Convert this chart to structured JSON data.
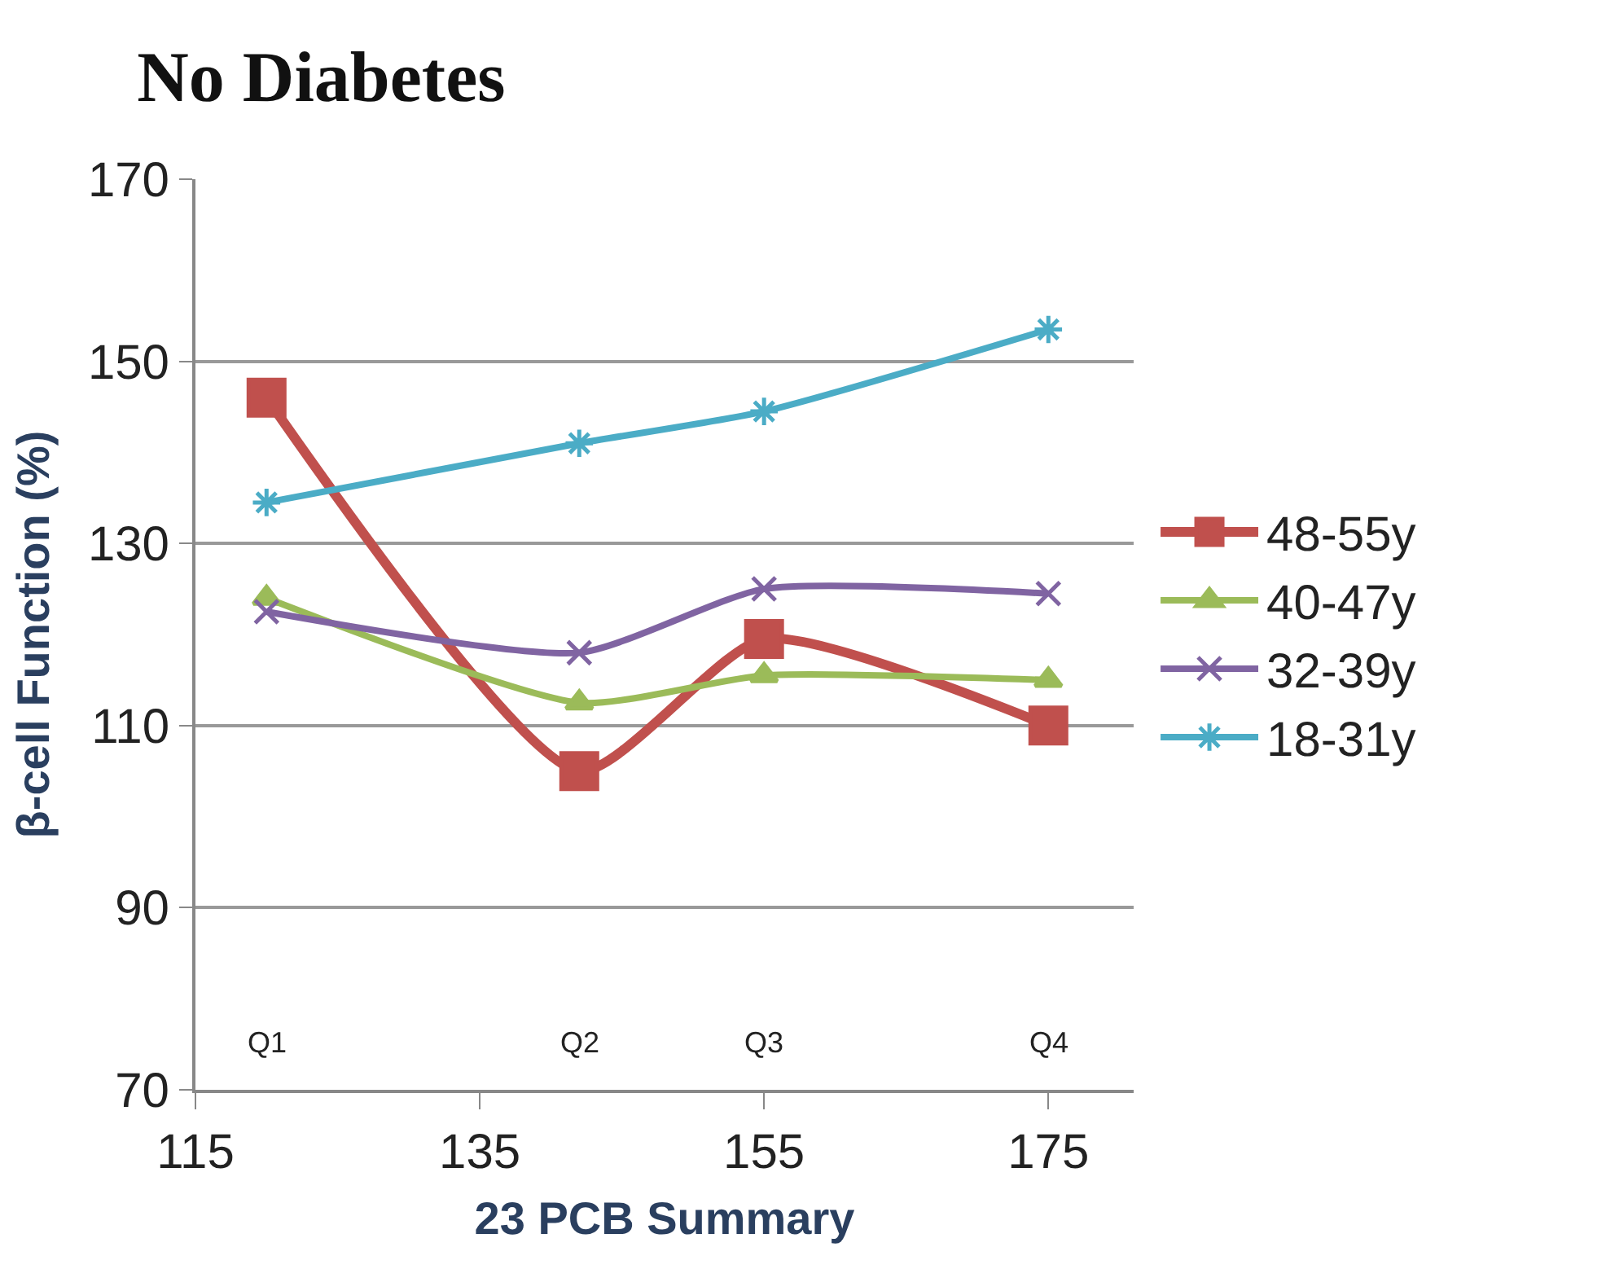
{
  "chart_data": {
    "type": "line",
    "title": "No Diabetes",
    "xlabel": "23 PCB Summary",
    "ylabel": "β-cell Function (%)",
    "series": [
      {
        "name": "48-55y",
        "color": "#c0504d",
        "marker": "square",
        "x": [
          120,
          142,
          155,
          175
        ],
        "values": [
          146,
          105,
          119.5,
          110
        ]
      },
      {
        "name": "40-47y",
        "color": "#9bbb59",
        "marker": "triangle",
        "x": [
          120,
          142,
          155,
          175
        ],
        "values": [
          124,
          112.5,
          115.5,
          115
        ]
      },
      {
        "name": "32-39y",
        "color": "#8064a2",
        "marker": "cross",
        "x": [
          120,
          142,
          155,
          175
        ],
        "values": [
          122.5,
          118,
          125,
          124.5
        ]
      },
      {
        "name": "18-31y",
        "color": "#4bacc6",
        "marker": "cross",
        "x": [
          120,
          142,
          155,
          175
        ],
        "values": [
          134.5,
          141,
          144.5,
          153.5
        ]
      }
    ],
    "annotations": [
      "Q1",
      "Q2",
      "Q3",
      "Q4"
    ],
    "xlim": [
      115,
      181
    ],
    "xticks": [
      115,
      135,
      155,
      175
    ],
    "ylim": [
      70,
      170
    ],
    "yticks": [
      70,
      90,
      110,
      130,
      150,
      170
    ],
    "grid": "y",
    "legend": "right"
  }
}
